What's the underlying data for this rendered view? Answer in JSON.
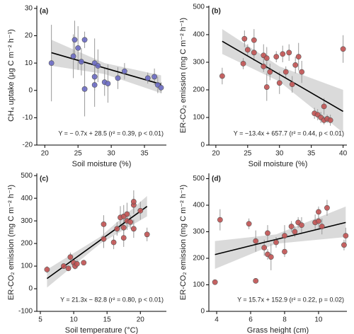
{
  "chart_data": [
    {
      "type": "scatter",
      "panel_label": "(a)",
      "x_label": "Soil moisture (%)",
      "y_label": "CH₄ uptake (μg C m⁻² h⁻¹)",
      "annotation": "Y = − 0.7x + 28.5 (r² = 0.39, p < 0.01)",
      "color": "#6b6bc4",
      "xlim": [
        18.8,
        38.3
      ],
      "xticks": [
        20,
        25,
        30,
        35
      ],
      "ylim": [
        -20,
        31
      ],
      "yticks": [
        -20,
        -10,
        0,
        10,
        20,
        30
      ],
      "x": [
        21,
        24.3,
        24.5,
        25,
        25.5,
        26,
        26,
        27.5,
        27.5,
        27.5,
        28,
        29,
        29.5,
        31,
        32,
        35.5,
        36.5,
        37,
        37.5
      ],
      "values": [
        10,
        12.5,
        18.5,
        15.5,
        10.5,
        18.5,
        0.5,
        10,
        5,
        2,
        9,
        3,
        2.5,
        4.5,
        7,
        4.5,
        5,
        2,
        1
      ],
      "errors": [
        14,
        8,
        7,
        8,
        5,
        3,
        10,
        9,
        5,
        8,
        6,
        5,
        7,
        4,
        3,
        2,
        3,
        3,
        2
      ],
      "fit": {
        "x": [
          21,
          29,
          37.5
        ],
        "values": [
          13.8,
          8.2,
          2.25
        ],
        "lower": [
          9,
          6,
          -1
        ],
        "upper": [
          18.5,
          10,
          5.5
        ]
      }
    },
    {
      "type": "scatter",
      "panel_label": "(b)",
      "x_label": "Soil moisture (%)",
      "y_label": "ER-CO₂ emission (mg C m⁻² h⁻¹)",
      "annotation": "Y = −13.4x + 657.7 (r² = 0.44, p < 0.01)",
      "color": "#c25353",
      "xlim": [
        18.9,
        40.6
      ],
      "xticks": [
        20,
        25,
        30,
        35,
        40
      ],
      "ylim": [
        0,
        505
      ],
      "yticks": [
        0,
        100,
        200,
        300,
        400,
        500
      ],
      "x": [
        21,
        24.3,
        24.5,
        25,
        26,
        26,
        27.5,
        27.5,
        28,
        28,
        28.5,
        29.5,
        30,
        30.5,
        31,
        31.5,
        32,
        32.5,
        33,
        33.5,
        35.5,
        36,
        36.5,
        37,
        37,
        37.5,
        38,
        40
      ],
      "values": [
        250,
        295,
        385,
        345,
        380,
        335,
        325,
        285,
        210,
        315,
        265,
        320,
        225,
        330,
        265,
        335,
        220,
        290,
        320,
        265,
        115,
        110,
        100,
        140,
        90,
        95,
        90,
        348
      ],
      "errors": [
        30,
        20,
        30,
        20,
        40,
        30,
        40,
        20,
        50,
        40,
        30,
        20,
        40,
        30,
        20,
        30,
        30,
        30,
        50,
        40,
        20,
        20,
        20,
        30,
        15,
        15,
        20,
        50
      ],
      "fit": {
        "x": [
          21,
          30,
          40
        ],
        "values": [
          376,
          256,
          122
        ],
        "lower": [
          330,
          230,
          45
        ],
        "upper": [
          420,
          285,
          200
        ]
      }
    },
    {
      "type": "scatter",
      "panel_label": "(c)",
      "x_label": "Soil temperature (°C)",
      "y_label": "ER-CO₂ emission (mg C m⁻² h⁻¹)",
      "annotation": "Y = 21.3x − 82.8 (r² = 0.80, p < 0.01)",
      "color": "#c25353",
      "xlim": [
        4.47,
        23.9
      ],
      "xticks": [
        5,
        10,
        15,
        20
      ],
      "ylim": [
        -100,
        510
      ],
      "yticks": [
        -100,
        0,
        100,
        200,
        300,
        400,
        500
      ],
      "x": [
        6,
        8.5,
        9.2,
        9.5,
        10,
        10.2,
        10.5,
        11.5,
        14.5,
        14.5,
        16,
        16.5,
        17,
        17.5,
        17.5,
        17.5,
        18,
        18,
        18.5,
        19,
        19,
        19,
        20,
        21
      ],
      "values": [
        85,
        100,
        90,
        140,
        115,
        100,
        110,
        115,
        220,
        285,
        205,
        265,
        315,
        320,
        270,
        225,
        330,
        300,
        295,
        370,
        385,
        265,
        345,
        240
      ],
      "errors": [
        15,
        10,
        10,
        20,
        20,
        15,
        20,
        10,
        40,
        40,
        30,
        30,
        50,
        50,
        40,
        40,
        50,
        40,
        30,
        40,
        50,
        40,
        40,
        30
      ],
      "fit": {
        "x": [
          6,
          14,
          21
        ],
        "values": [
          45,
          215,
          364
        ],
        "lower": [
          5,
          200,
          320
        ],
        "upper": [
          85,
          230,
          410
        ]
      }
    },
    {
      "type": "scatter",
      "panel_label": "(d)",
      "x_label": "Grass height (cm)",
      "y_label": "ER-CO₂ emission (mg C m⁻² h⁻¹)",
      "annotation": "Y = 15.7x + 152.9 (r² = 0.22, p = 0.02)",
      "color": "#c25353",
      "xlim": [
        3.54,
        11.67
      ],
      "xticks": [
        4,
        6,
        8,
        10
      ],
      "ylim": [
        0,
        520
      ],
      "yticks": [
        0,
        100,
        200,
        300,
        400,
        500
      ],
      "x": [
        3.9,
        4.2,
        5.9,
        6.3,
        6.3,
        6.8,
        7,
        7,
        7.2,
        7.5,
        8,
        8,
        8.4,
        8.6,
        8.8,
        9,
        9.8,
        10,
        10,
        10.2,
        10.5,
        11.5,
        11.6
      ],
      "values": [
        110,
        345,
        330,
        115,
        265,
        240,
        295,
        215,
        205,
        260,
        285,
        225,
        320,
        300,
        335,
        325,
        335,
        375,
        340,
        320,
        390,
        250,
        285
      ],
      "errors": [
        10,
        40,
        20,
        10,
        40,
        30,
        30,
        20,
        50,
        20,
        40,
        20,
        20,
        20,
        20,
        30,
        30,
        20,
        30,
        30,
        30,
        20,
        30
      ],
      "fit": {
        "x": [
          3.9,
          7.5,
          11.6
        ],
        "values": [
          214,
          271,
          335
        ],
        "lower": [
          160,
          255,
          280
        ],
        "upper": [
          265,
          290,
          395
        ]
      }
    }
  ]
}
